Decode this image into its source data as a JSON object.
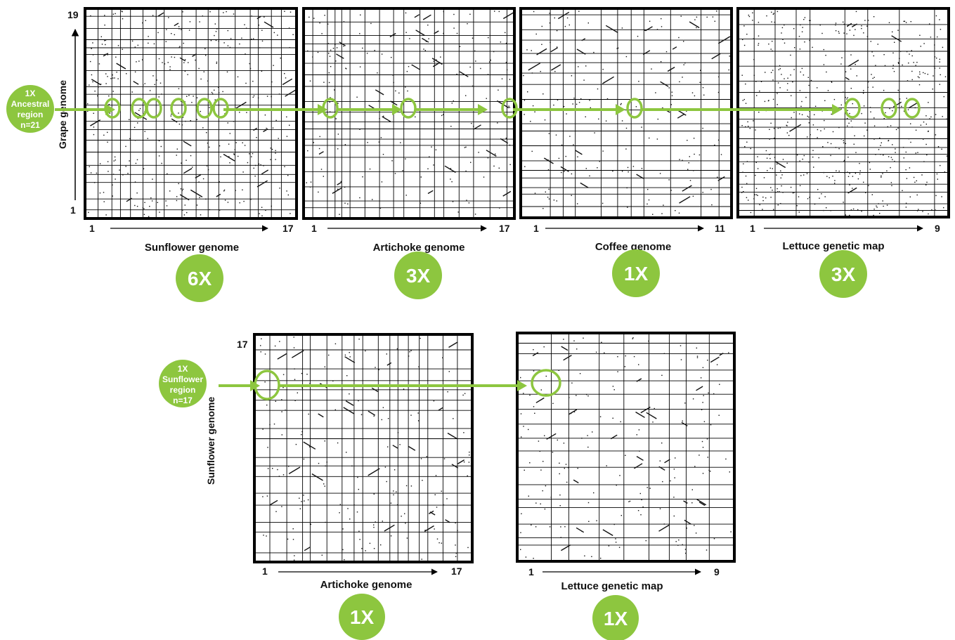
{
  "colors": {
    "accent": "#8dc63f",
    "frame": "#000000",
    "dot": "#111111"
  },
  "top_row": {
    "y_axis": {
      "label": "Grape genome",
      "max": "19",
      "min": "1"
    },
    "badge": {
      "lines": [
        "1X",
        "Ancestral",
        "region",
        "n=21"
      ]
    },
    "panels": [
      {
        "genome": "Sunflower genome",
        "x_min": "1",
        "x_max": "17",
        "ratio": "6X",
        "x_chromosomes": 17,
        "y_chromosomes": 19
      },
      {
        "genome": "Artichoke genome",
        "x_min": "1",
        "x_max": "17",
        "ratio": "3X",
        "x_chromosomes": 17,
        "y_chromosomes": 19
      },
      {
        "genome": "Coffee genome",
        "x_min": "1",
        "x_max": "11",
        "ratio": "1X",
        "x_chromosomes": 11,
        "y_chromosomes": 19
      },
      {
        "genome": "Lettuce genetic map",
        "x_min": "1",
        "x_max": "9",
        "ratio": "3X",
        "x_chromosomes": 9,
        "y_chromosomes": 19
      }
    ]
  },
  "bottom_row": {
    "y_axis": {
      "label": "Sunflower genome",
      "max": "17"
    },
    "badge": {
      "lines": [
        "1X",
        "Sunflower",
        "region",
        "n=17"
      ]
    },
    "panels": [
      {
        "genome": "Artichoke genome",
        "x_min": "1",
        "x_max": "17",
        "ratio": "1X",
        "x_chromosomes": 17,
        "y_chromosomes": 17
      },
      {
        "genome": "Lettuce genetic map",
        "x_min": "1",
        "x_max": "9",
        "ratio": "1X",
        "x_chromosomes": 9,
        "y_chromosomes": 17
      }
    ]
  }
}
